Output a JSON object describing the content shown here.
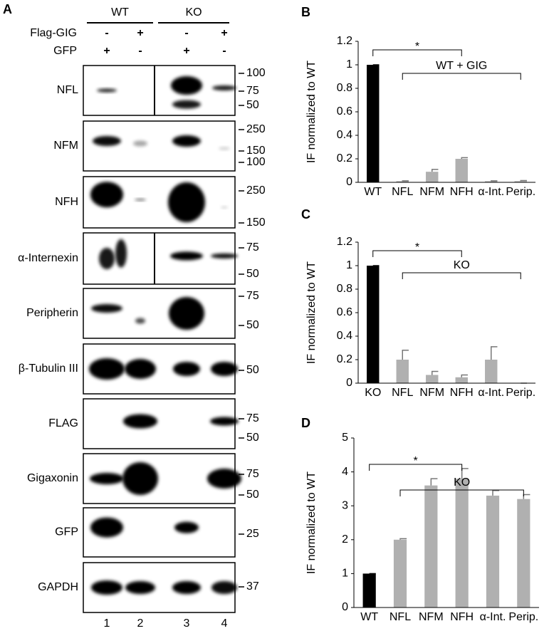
{
  "blot": {
    "label": "A",
    "groups": [
      "WT",
      "KO"
    ],
    "conditions": [
      {
        "name": "Flag-GIG",
        "signs": [
          "-",
          "+",
          "-",
          "+"
        ]
      },
      {
        "name": "GFP",
        "signs": [
          "+",
          "-",
          "+",
          "-"
        ]
      }
    ],
    "rows": [
      {
        "name": "NFL",
        "markers": [
          100,
          75,
          50
        ]
      },
      {
        "name": "NFM",
        "markers": [
          250,
          150,
          100
        ]
      },
      {
        "name": "NFH",
        "markers": [
          250,
          150
        ]
      },
      {
        "name": "α-Internexin",
        "markers": [
          75,
          50
        ]
      },
      {
        "name": "Peripherin",
        "markers": [
          75,
          50
        ]
      },
      {
        "name": "β-Tubulin III",
        "markers": [
          50
        ]
      },
      {
        "name": "FLAG",
        "markers": [
          75,
          50
        ]
      },
      {
        "name": "Gigaxonin",
        "markers": [
          75,
          50
        ]
      },
      {
        "name": "GFP",
        "markers": [
          25
        ]
      },
      {
        "name": "GAPDH",
        "markers": [
          37
        ]
      }
    ],
    "lanes": [
      "1",
      "2",
      "3",
      "4"
    ]
  },
  "chart_data": [
    {
      "type": "bar",
      "label": "B",
      "ylabel": "IF normalized to WT",
      "categories": [
        "WT",
        "NFL",
        "NFM",
        "NFH",
        "α-Int.",
        "Perip."
      ],
      "values": [
        1,
        0.01,
        0.09,
        0.2,
        0.01,
        0.01
      ],
      "errors": [
        0,
        0.003,
        0.02,
        0.01,
        0.003,
        0.005
      ],
      "colors": [
        "#000000",
        "#b0b0b0",
        "#b0b0b0",
        "#b0b0b0",
        "#b0b0b0",
        "#b0b0b0"
      ],
      "ylim": [
        0,
        1.2
      ],
      "yticks": [
        0,
        0.2,
        0.4,
        0.6,
        0.8,
        1,
        1.2
      ],
      "annotations": [
        "*",
        "WT + GIG"
      ]
    },
    {
      "type": "bar",
      "label": "C",
      "ylabel": "IF normalized to WT",
      "categories": [
        "KO",
        "NFL",
        "NFM",
        "NFH",
        "α-Int.",
        "Perip."
      ],
      "values": [
        1,
        0.2,
        0.07,
        0.05,
        0.2,
        0
      ],
      "errors": [
        0,
        0.08,
        0.03,
        0.02,
        0.11,
        0
      ],
      "colors": [
        "#000000",
        "#b0b0b0",
        "#b0b0b0",
        "#b0b0b0",
        "#b0b0b0",
        "#b0b0b0"
      ],
      "ylim": [
        0,
        1.2
      ],
      "yticks": [
        0,
        0.2,
        0.4,
        0.6,
        0.8,
        1,
        1.2
      ],
      "annotations": [
        "*",
        "KO"
      ]
    },
    {
      "type": "bar",
      "label": "D",
      "ylabel": "IF  normalized to WT",
      "categories": [
        "WT",
        "NFL",
        "NFM",
        "NFH",
        "α-Int.",
        "Perip."
      ],
      "values": [
        1,
        2,
        3.6,
        3.8,
        3.3,
        3.2
      ],
      "errors": [
        0,
        0.03,
        0.2,
        0.3,
        0.15,
        0.13
      ],
      "colors": [
        "#000000",
        "#b0b0b0",
        "#b0b0b0",
        "#b0b0b0",
        "#b0b0b0",
        "#b0b0b0"
      ],
      "ylim": [
        0,
        5
      ],
      "yticks": [
        0,
        1,
        2,
        3,
        4,
        5
      ],
      "annotations": [
        "*",
        "KO"
      ]
    }
  ]
}
